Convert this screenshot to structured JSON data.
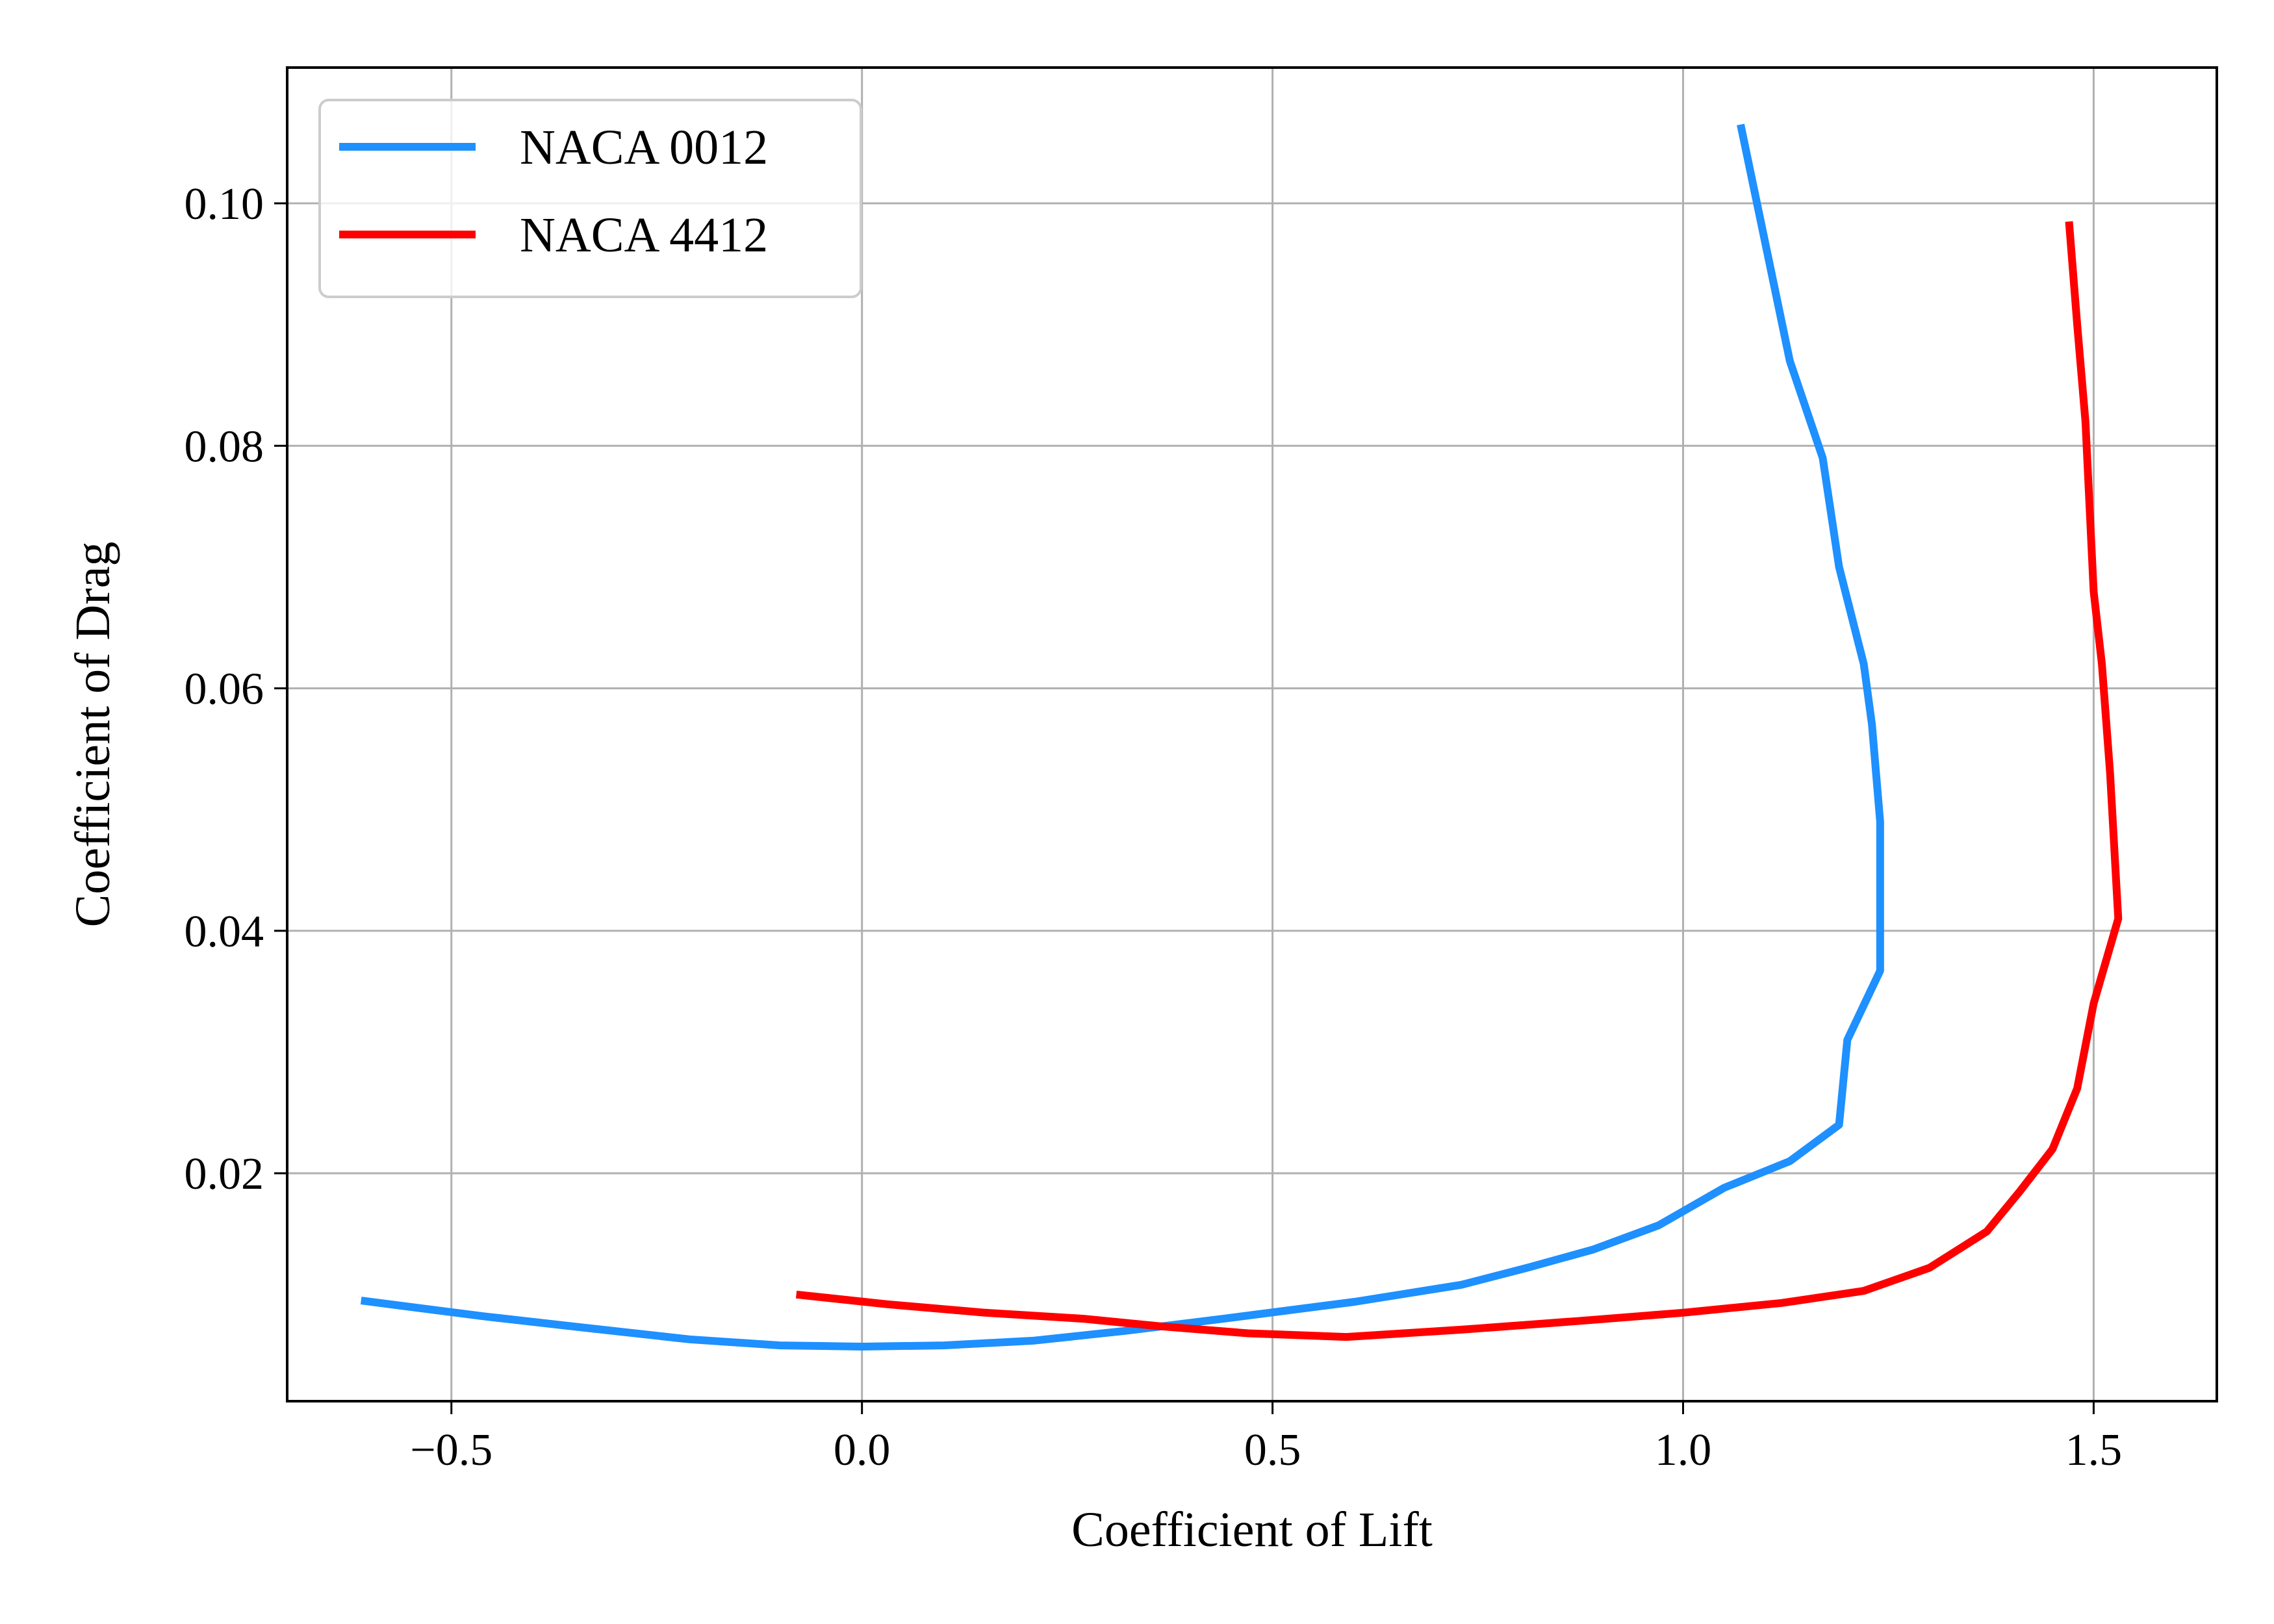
{
  "chart_data": {
    "type": "line",
    "title": "",
    "xlabel": "Coefficient of Lift",
    "ylabel": "Coefficient of Drag",
    "xlim": [
      -0.7,
      1.65
    ],
    "ylim": [
      0.0012,
      0.1112
    ],
    "xticks": [
      {
        "value": -0.5,
        "label": "−0.5"
      },
      {
        "value": 0.0,
        "label": "0.0"
      },
      {
        "value": 0.5,
        "label": "0.5"
      },
      {
        "value": 1.0,
        "label": "1.0"
      },
      {
        "value": 1.5,
        "label": "1.5"
      }
    ],
    "yticks": [
      {
        "value": 0.02,
        "label": "0.02"
      },
      {
        "value": 0.04,
        "label": "0.04"
      },
      {
        "value": 0.06,
        "label": "0.06"
      },
      {
        "value": 0.08,
        "label": "0.08"
      },
      {
        "value": 0.1,
        "label": "0.10"
      }
    ],
    "grid": true,
    "legend_position": "top-left",
    "series": [
      {
        "name": "NACA 0012",
        "color": "#1E90FF",
        "x": [
          -0.61,
          -0.46,
          -0.33,
          -0.21,
          -0.1,
          0.0,
          0.1,
          0.21,
          0.32,
          0.44,
          0.6,
          0.73,
          0.81,
          0.89,
          0.97,
          1.05,
          1.13,
          1.19,
          1.2,
          1.24,
          1.24,
          1.23,
          1.22,
          1.19,
          1.17,
          1.13,
          1.07
        ],
        "y": [
          0.0095,
          0.0082,
          0.0072,
          0.0063,
          0.0058,
          0.0057,
          0.0058,
          0.0062,
          0.007,
          0.008,
          0.0094,
          0.0108,
          0.0122,
          0.0137,
          0.0157,
          0.0188,
          0.021,
          0.024,
          0.031,
          0.0367,
          0.049,
          0.057,
          0.062,
          0.07,
          0.079,
          0.087,
          0.1065
        ]
      },
      {
        "name": "NACA 4412",
        "color": "#FF0000",
        "x": [
          -0.08,
          0.03,
          0.15,
          0.27,
          0.36,
          0.47,
          0.59,
          0.73,
          0.87,
          1.0,
          1.12,
          1.22,
          1.3,
          1.37,
          1.41,
          1.45,
          1.48,
          1.5,
          1.53,
          1.52,
          1.51,
          1.5,
          1.49,
          1.48,
          1.47
        ],
        "y": [
          0.01,
          0.0092,
          0.0085,
          0.008,
          0.0074,
          0.0068,
          0.0065,
          0.0071,
          0.0078,
          0.0085,
          0.0093,
          0.0103,
          0.0122,
          0.0152,
          0.0185,
          0.022,
          0.027,
          0.034,
          0.041,
          0.053,
          0.062,
          0.068,
          0.082,
          0.09,
          0.0985
        ]
      }
    ]
  }
}
